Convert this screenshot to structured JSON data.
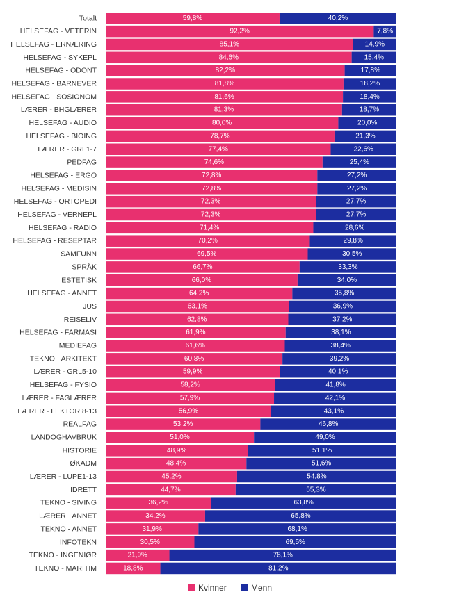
{
  "chart_data": {
    "type": "bar",
    "orientation": "horizontal",
    "stacked": true,
    "percent_stacked": true,
    "xlim": [
      0,
      100
    ],
    "categories": [
      "Totalt",
      "HELSEFAG - VETERIN",
      "HELSEFAG - ERNÆRING",
      "HELSEFAG - SYKEPL",
      "HELSEFAG - ODONT",
      "HELSEFAG - BARNEVER",
      "HELSEFAG - SOSIONOM",
      "LÆRER - BHGLÆRER",
      "HELSEFAG - AUDIO",
      "HELSEFAG - BIOING",
      "LÆRER - GRL1-7",
      "PEDFAG",
      "HELSEFAG - ERGO",
      "HELSEFAG - MEDISIN",
      "HELSEFAG - ORTOPEDI",
      "HELSEFAG - VERNEPL",
      "HELSEFAG - RADIO",
      "HELSEFAG - RESEPTAR",
      "SAMFUNN",
      "SPRÅK",
      "ESTETISK",
      "HELSEFAG - ANNET",
      "JUS",
      "REISELIV",
      "HELSEFAG - FARMASI",
      "MEDIEFAG",
      "TEKNO - ARKITEKT",
      "LÆRER - GRL5-10",
      "HELSEFAG - FYSIO",
      "LÆRER - FAGLÆRER",
      "LÆRER - LEKTOR 8-13",
      "REALFAG",
      "LANDOGHAVBRUK",
      "HISTORIE",
      "ØKADM",
      "LÆRER - LUPE1-13",
      "IDRETT",
      "TEKNO - SIVING",
      "LÆRER - ANNET",
      "TEKNO - ANNET",
      "INFOTEKN",
      "TEKNO - INGENIØR",
      "TEKNO - MARITIM"
    ],
    "series": [
      {
        "name": "Kvinner",
        "color": "#e8306f",
        "values": [
          59.8,
          92.2,
          85.1,
          84.6,
          82.2,
          81.8,
          81.6,
          81.3,
          80.0,
          78.7,
          77.4,
          74.6,
          72.8,
          72.8,
          72.3,
          72.3,
          71.4,
          70.2,
          69.5,
          66.7,
          66.0,
          64.2,
          63.1,
          62.8,
          61.9,
          61.6,
          60.8,
          59.9,
          58.2,
          57.9,
          56.9,
          53.2,
          51.0,
          48.9,
          48.4,
          45.2,
          44.7,
          36.2,
          34.2,
          31.9,
          30.5,
          21.9,
          18.8
        ],
        "labels": [
          "59,8%",
          "92,2%",
          "85,1%",
          "84,6%",
          "82,2%",
          "81,8%",
          "81,6%",
          "81,3%",
          "80,0%",
          "78,7%",
          "77,4%",
          "74,6%",
          "72,8%",
          "72,8%",
          "72,3%",
          "72,3%",
          "71,4%",
          "70,2%",
          "69,5%",
          "66,7%",
          "66,0%",
          "64,2%",
          "63,1%",
          "62,8%",
          "61,9%",
          "61,6%",
          "60,8%",
          "59,9%",
          "58,2%",
          "57,9%",
          "56,9%",
          "53,2%",
          "51,0%",
          "48,9%",
          "48,4%",
          "45,2%",
          "44,7%",
          "36,2%",
          "34,2%",
          "31,9%",
          "30,5%",
          "21,9%",
          "18,8%"
        ]
      },
      {
        "name": "Menn",
        "color": "#1c2da0",
        "values": [
          40.2,
          7.8,
          14.9,
          15.4,
          17.8,
          18.2,
          18.4,
          18.7,
          20.0,
          21.3,
          22.6,
          25.4,
          27.2,
          27.2,
          27.7,
          27.7,
          28.6,
          29.8,
          30.5,
          33.3,
          34.0,
          35.8,
          36.9,
          37.2,
          38.1,
          38.4,
          39.2,
          40.1,
          41.8,
          42.1,
          43.1,
          46.8,
          49.0,
          51.1,
          51.6,
          54.8,
          55.3,
          63.8,
          65.8,
          68.1,
          69.5,
          78.1,
          81.2
        ],
        "labels": [
          "40,2%",
          "7,8%",
          "14,9%",
          "15,4%",
          "17,8%",
          "18,2%",
          "18,4%",
          "18,7%",
          "20,0%",
          "21,3%",
          "22,6%",
          "25,4%",
          "27,2%",
          "27,2%",
          "27,7%",
          "27,7%",
          "28,6%",
          "29,8%",
          "30,5%",
          "33,3%",
          "34,0%",
          "35,8%",
          "36,9%",
          "37,2%",
          "38,1%",
          "38,4%",
          "39,2%",
          "40,1%",
          "41,8%",
          "42,1%",
          "43,1%",
          "46,8%",
          "49,0%",
          "51,1%",
          "51,6%",
          "54,8%",
          "55,3%",
          "63,8%",
          "65,8%",
          "68,1%",
          "69,5%",
          "78,1%",
          "81,2%"
        ]
      }
    ],
    "legend_position": "bottom-center"
  }
}
